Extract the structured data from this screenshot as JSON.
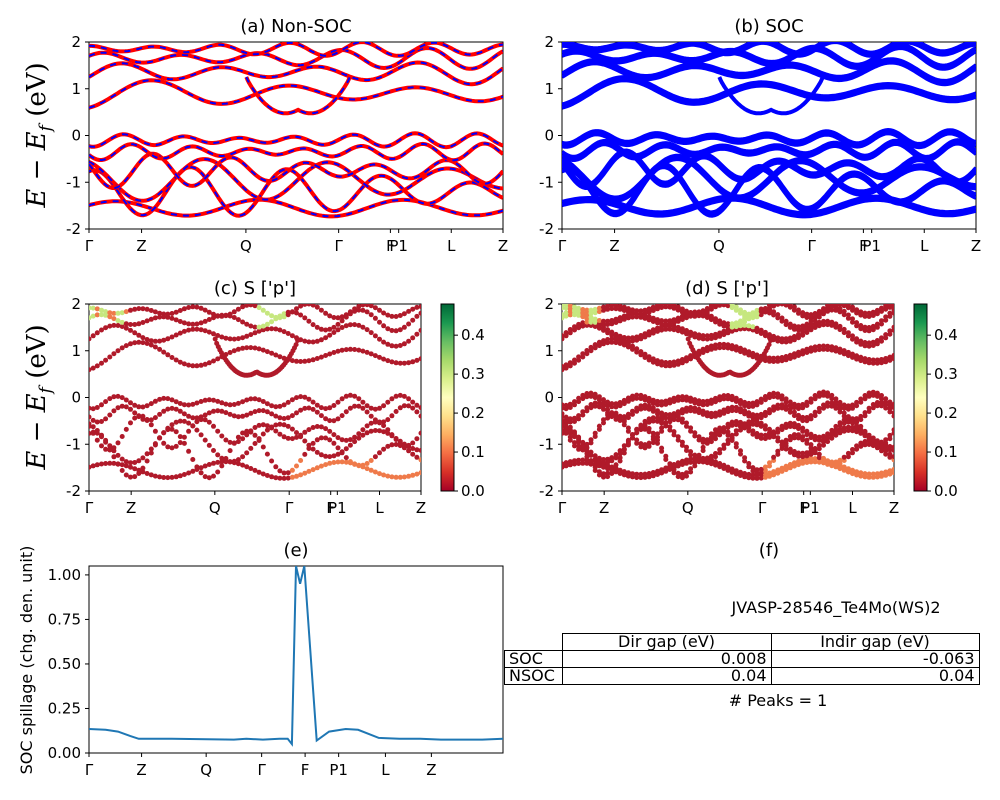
{
  "chart_data": [
    {
      "panel": "a",
      "type": "line",
      "title": "(a) Non-SOC",
      "ylabel": "E - E_f (eV)",
      "ylim": [
        -2,
        2
      ],
      "yticks": [
        "-2",
        "-1",
        "0",
        "1",
        "2"
      ],
      "kpath_labels": [
        "Γ",
        "Z",
        "Q",
        "Γ",
        "F",
        "P1",
        "L",
        "Z"
      ],
      "series_colors": [
        "#ff0000",
        "#0000ff"
      ],
      "bands": [
        {
          "base": -1.55,
          "amp": 0.12,
          "freq": 6
        },
        {
          "base": -1.2,
          "amp": 0.35,
          "freq": 9
        },
        {
          "base": -0.95,
          "amp": 0.3,
          "freq": 7
        },
        {
          "base": -0.75,
          "amp": 0.25,
          "freq": 11
        },
        {
          "base": -0.35,
          "amp": 0.12,
          "freq": 14
        },
        {
          "base": -0.1,
          "amp": 0.1,
          "freq": 14
        },
        {
          "base": 0.9,
          "amp": 0.25,
          "freq": 6
        },
        {
          "base": 1.35,
          "amp": 0.2,
          "freq": 8
        },
        {
          "base": 1.65,
          "amp": 0.15,
          "freq": 10
        },
        {
          "base": 1.85,
          "amp": 0.1,
          "freq": 12
        }
      ]
    },
    {
      "panel": "b",
      "type": "line",
      "title": "(b) SOC",
      "ylim": [
        -2,
        2
      ],
      "yticks": [
        "-2",
        "-1",
        "0",
        "1",
        "2"
      ],
      "kpath_labels": [
        "Γ",
        "Z",
        "Q",
        "Γ",
        "F",
        "P1",
        "L",
        "Z"
      ],
      "series_colors": [
        "#0000ff"
      ]
    },
    {
      "panel": "c",
      "type": "scatter",
      "title": "(c)  S ['p']",
      "ylabel": "E - E_f (eV)",
      "ylim": [
        -2,
        2
      ],
      "yticks": [
        "-2",
        "-1",
        "0",
        "1",
        "2"
      ],
      "kpath_labels": [
        "Γ",
        "Z",
        "Q",
        "Γ",
        "F",
        "P1",
        "L",
        "Z"
      ],
      "colorbar": {
        "min": 0.0,
        "max": 0.48,
        "ticks": [
          "0.0",
          "0.1",
          "0.2",
          "0.3",
          "0.4"
        ],
        "colormap": "RdYlGn"
      }
    },
    {
      "panel": "d",
      "type": "scatter",
      "title": "(d) S ['p']",
      "ylim": [
        -2,
        2
      ],
      "yticks": [
        "-2",
        "-1",
        "0",
        "1",
        "2"
      ],
      "kpath_labels": [
        "Γ",
        "Z",
        "Q",
        "Γ",
        "F",
        "P1",
        "L",
        "Z"
      ],
      "colorbar": {
        "min": 0.0,
        "max": 0.48,
        "ticks": [
          "0.0",
          "0.1",
          "0.2",
          "0.3",
          "0.4"
        ],
        "colormap": "RdYlGn"
      }
    },
    {
      "panel": "e",
      "type": "line",
      "title": "(e)",
      "ylabel": "SOC spillage (chg. den. unit)",
      "ylim": [
        0,
        1.05
      ],
      "yticks": [
        "0.00",
        "0.25",
        "0.50",
        "0.75",
        "1.00"
      ],
      "xticks": [
        "Γ",
        "Z",
        "Q",
        "Γ",
        "F",
        "P1",
        "L",
        "Z"
      ],
      "series_color": "#1f77b4",
      "x": [
        0,
        0.04,
        0.07,
        0.1,
        0.12,
        0.2,
        0.35,
        0.38,
        0.42,
        0.46,
        0.48,
        0.49,
        0.5,
        0.51,
        0.52,
        0.55,
        0.58,
        0.62,
        0.65,
        0.7,
        0.75,
        0.8,
        0.85,
        0.9,
        0.95,
        1.0
      ],
      "y": [
        0.135,
        0.13,
        0.12,
        0.095,
        0.08,
        0.08,
        0.075,
        0.08,
        0.075,
        0.08,
        0.08,
        0.05,
        1.05,
        0.95,
        1.05,
        0.07,
        0.12,
        0.135,
        0.13,
        0.085,
        0.08,
        0.08,
        0.075,
        0.075,
        0.075,
        0.08
      ]
    },
    {
      "panel": "f",
      "type": "table",
      "title": "(f)",
      "caption": "JVASP-28546_Te4Mo(WS)2",
      "columns": [
        "Dir gap (eV)",
        "Indir gap (eV)"
      ],
      "rows": [
        {
          "label": "SOC",
          "values": [
            "0.008",
            "-0.063"
          ]
        },
        {
          "label": "NSOC",
          "values": [
            "0.04",
            "0.04"
          ]
        }
      ],
      "footer": "# Peaks = 1"
    }
  ]
}
